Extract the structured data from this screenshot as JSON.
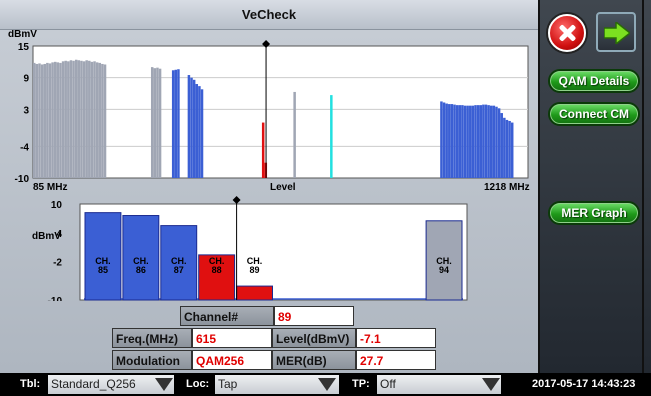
{
  "window": {
    "title": "VeCheck"
  },
  "sidebar": {
    "qam_details_label": "QAM Details",
    "connect_cm_label": "Connect CM",
    "mer_graph_label": "MER Graph"
  },
  "spectrum": {
    "y_unit": "dBmV",
    "x_start_label": "85 MHz",
    "x_end_label": "1218 MHz",
    "x_center_label": "Level",
    "y_ticks": [
      "15",
      "9",
      "3",
      "-4",
      "-10"
    ]
  },
  "zoom": {
    "y_unit": "dBmV",
    "y_ticks": [
      "10",
      "4",
      "-2",
      "-10"
    ]
  },
  "details": {
    "channel_label": "Channel#",
    "channel_value": "89",
    "freq_label": "Freq.(MHz)",
    "freq_value": "615",
    "level_label": "Level(dBmV)",
    "level_value": "-7.1",
    "modulation_label": "Modulation",
    "modulation_value": "QAM256",
    "mer_label": "MER(dB)",
    "mer_value": "27.7"
  },
  "bottombar": {
    "tbl_label": "Tbl:",
    "tbl_value": "Standard_Q256",
    "loc_label": "Loc:",
    "loc_value": "Tap",
    "tp_label": "TP:",
    "tp_value": "Off",
    "datetime": "2017-05-17 14:43:23"
  },
  "chart_data": [
    {
      "type": "bar",
      "ylabel": "dBmV",
      "ylim": [
        -10,
        15
      ],
      "xlim_mhz": [
        85,
        1218
      ],
      "series": [
        {
          "color": "#a0a6b4",
          "start_mhz": 85,
          "step_mhz": 6,
          "values": [
            11.8,
            11.6,
            11.7,
            11.5,
            11.6,
            11.8,
            11.7,
            11.9,
            12,
            11.9,
            11.8,
            12.1,
            12.2,
            12.1,
            12.3,
            12.2,
            12.4,
            12.3,
            12.2,
            12.1,
            12.3,
            12.2,
            12,
            12.1,
            11.9,
            11.8,
            11.6,
            11.5
          ]
        },
        {
          "color": "#a0a6b4",
          "start_mhz": 355,
          "step_mhz": 6,
          "values": [
            11,
            10.8,
            10.9,
            10.7
          ]
        },
        {
          "color": "#3b5fd4",
          "start_mhz": 403,
          "step_mhz": 6,
          "values": [
            10.4,
            10.5,
            10.6
          ]
        },
        {
          "color": "#3b5fd4",
          "start_mhz": 439,
          "step_mhz": 6,
          "values": [
            9.5,
            9,
            8.6,
            7.8,
            7.4,
            6.8
          ]
        },
        {
          "color": "#e01010",
          "start_mhz": 609,
          "step_mhz": 6,
          "values": [
            0.5,
            -7.1
          ]
        },
        {
          "color": "#a0a6b4",
          "start_mhz": 681,
          "step_mhz": 6,
          "values": [
            6.3
          ]
        },
        {
          "color": "#22e0e0",
          "start_mhz": 765,
          "step_mhz": 6,
          "values": [
            5.7
          ]
        },
        {
          "color": "#3b5fd4",
          "start_mhz": 1017,
          "step_mhz": 6,
          "values": [
            4.5,
            4.3,
            4.1,
            4.0,
            4.0,
            3.9,
            3.8,
            3.8,
            3.8,
            3.7,
            3.7,
            3.7,
            3.7,
            3.8,
            3.8,
            3.8,
            3.9,
            3.9,
            3.8,
            3.7,
            3.7,
            3.5,
            3.2,
            2.3,
            1.4,
            1,
            0.8,
            0.5
          ]
        }
      ],
      "marker_mhz": 615
    },
    {
      "type": "bar",
      "ylabel": "dBmV",
      "ylim": [
        -10,
        10
      ],
      "categories": [
        "CH. 85",
        "CH. 86",
        "CH. 87",
        "CH. 88",
        "CH. 89",
        "",
        "",
        "",
        "",
        "CH. 94"
      ],
      "values": [
        8.2,
        7.6,
        5.5,
        -0.6,
        -7.1,
        null,
        null,
        null,
        null,
        6.5
      ],
      "colors": [
        "#3b5fd4",
        "#3b5fd4",
        "#3b5fd4",
        "#e01010",
        "#e01010",
        null,
        null,
        null,
        null,
        "#a0a6b4"
      ],
      "marker_category": "CH. 89"
    }
  ]
}
